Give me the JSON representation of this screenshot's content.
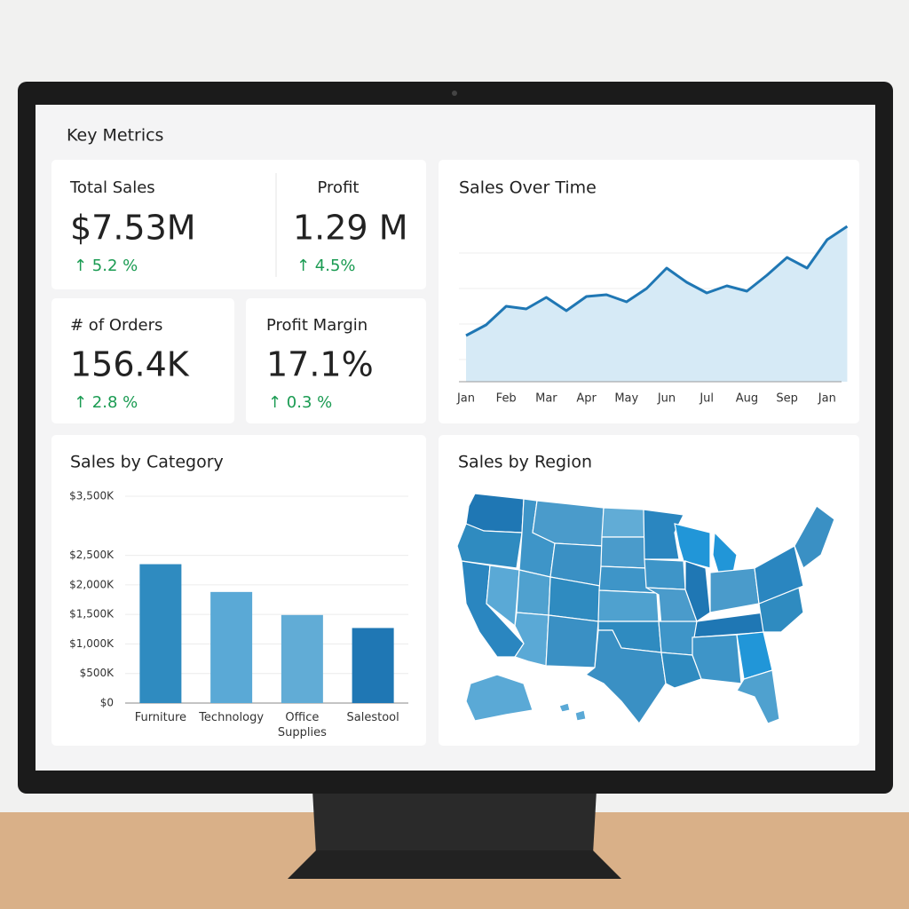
{
  "header": {
    "title": "Key Metrics"
  },
  "metrics": [
    {
      "label": "Total Sales",
      "value": "$7.53M",
      "change": "↑ 5.2 %"
    },
    {
      "label": "Profit",
      "value": "1.29 M",
      "change": "↑ 4.5%"
    },
    {
      "label": "# of Orders",
      "value": "156.4K",
      "change": "↑ 2.8 %"
    },
    {
      "label": "Profit Margin",
      "value": "17.1%",
      "change": "↑ 0.3 %"
    }
  ],
  "chart_data": [
    {
      "type": "area",
      "title": "Sales Over Time",
      "categories": [
        "Jan",
        null,
        "Feb",
        null,
        "Mar",
        null,
        "Apr",
        null,
        "May",
        null,
        "Jun",
        null,
        "Jul",
        null,
        "Aug",
        null,
        "Sep",
        null,
        "Jan",
        null
      ],
      "values": [
        52,
        64,
        85,
        82,
        95,
        80,
        96,
        98,
        90,
        105,
        128,
        112,
        100,
        108,
        102,
        120,
        140,
        128,
        160,
        175
      ],
      "ylim": [
        0,
        190
      ],
      "color": "#1f77b4"
    },
    {
      "type": "bar",
      "title": "Sales by Category",
      "categories": [
        "Furniture",
        "Technology",
        "Office Supplies",
        "Salestool"
      ],
      "values": [
        2350,
        1880,
        1490,
        1270
      ],
      "colors": [
        "#2f8bc0",
        "#5aa9d6",
        "#61acd6",
        "#1f77b4"
      ],
      "ylim": [
        0,
        3500
      ],
      "yticks": [
        {
          "value": 0,
          "label": "$0"
        },
        {
          "value": 500,
          "label": "$500K"
        },
        {
          "value": 1000,
          "label": "$1,000K"
        },
        {
          "value": 1500,
          "label": "$1,500K"
        },
        {
          "value": 2000,
          "label": "$2,000K"
        },
        {
          "value": 2500,
          "label": "$2,500K"
        },
        {
          "value": 3500,
          "label": "$3,500K"
        }
      ],
      "grid": true
    }
  ],
  "map": {
    "title": "Sales by Region"
  }
}
